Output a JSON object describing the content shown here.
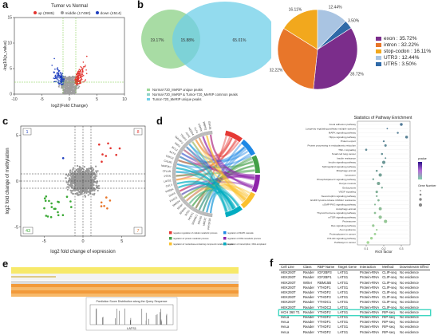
{
  "panels": {
    "a": {
      "label": "a",
      "title": "Tumor vs Normal",
      "legend": [
        {
          "label": "up (3985)",
          "color": "#e3342f"
        },
        {
          "label": "middle (17490)",
          "color": "#9e9e9e"
        },
        {
          "label": "down (4514)",
          "color": "#1f3fbf"
        }
      ]
    },
    "b": {
      "label": "b",
      "venn": {
        "left_pct": "19.17%",
        "overlap_pct": "15.88%",
        "right_pct": "65.01%",
        "left_color": "#9fd89a",
        "right_color": "#6fcfe8",
        "legend": [
          "Normal-720_MeRIP unique peaks",
          "Normal-720_MeRIP & Tumor-720_MeRIP common peaks",
          "Tumor-720_MeRIP unique peaks"
        ]
      },
      "pie_legend": [
        {
          "label": "exon : 35.72%",
          "color": "#7b2d8b"
        },
        {
          "label": "intron : 32.22%",
          "color": "#e8762a"
        },
        {
          "label": "stop-codon : 16.11%",
          "color": "#f2a81d"
        },
        {
          "label": "UTR3 : 12.44%",
          "color": "#a9c4e2"
        },
        {
          "label": "UTR5 : 3.50%",
          "color": "#2f6aa8"
        }
      ]
    },
    "c": {
      "label": "c",
      "quadrant_counts": {
        "top_left": "1",
        "top_right": "8",
        "bottom_left": "43",
        "bottom_right": "7"
      }
    },
    "d": {
      "label": "d",
      "enrichment_title": "Statistics of Pathway Enrichment",
      "xlabel": "Rich factor",
      "pathways": [
        "Focal adhesion pathway",
        "Longevity regulating pathway-multiple species",
        "MAPK signaling pathway",
        "Hippo signaling pathway",
        "Protein export",
        "Protein processing in endoplasmic reticulum",
        "TNF-1 signaling",
        "Small cell lung cancer",
        "Insulin resistance",
        "Insulin signaling pathway",
        "Sphingolipid signaling pathway",
        "Mitophagy-animal",
        "Lysosome",
        "Phospholipase D signaling pathway",
        "Oocyte meiosis",
        "Endocytosis",
        "VEGF signaling",
        "Neurotrophin signaling pathway",
        "EGFR tyrosine kinase inhibitor resistance",
        "cGMP-PKG signaling pathway",
        "Autophagy-animal",
        "Thyroid hormone signaling pathway",
        "mTOR signaling pathway",
        "Proteasome",
        "Ras signaling pathway",
        "Axon guidance",
        "Proteoglycans in cancer",
        "PI3-Akt signaling pathway",
        "Pathways in cancer"
      ],
      "chord_legend": [
        {
          "label": "negative regulation of cellular metabolic process",
          "color": "#e53935"
        },
        {
          "label": "regulation of MAPK cascade",
          "color": "#1e88e5"
        },
        {
          "label": "regulation of protein metabolic process",
          "color": "#43a047"
        },
        {
          "label": "regulation of RNA metabolic process",
          "color": "#8e24aa"
        },
        {
          "label": "regulation of nucleobase-containing compound metabolic process",
          "color": "#fbc02d"
        },
        {
          "label": "regulation of transcription, DNA-templated",
          "color": "#00acc1"
        }
      ],
      "genes": [
        "PPP2R1B",
        "UBE3C",
        "SOCS5",
        "SERINC1",
        "ROCK1",
        "SOS1",
        "BRMS1",
        "NKAP",
        "SMAD4",
        "FOXO1",
        "DHX9",
        "RAB2A",
        "CUL3",
        "LATS1",
        "PTEN",
        "CFLAR",
        "MAP3K7",
        "CALM1",
        "CDK13",
        "AKT3",
        "BCL2",
        "PAK2",
        "SMURF2",
        "TRAF3",
        "ATF2",
        "NEDD4",
        "KLF4",
        "USP9X",
        "BMPR2",
        "GSK3B"
      ],
      "size_legend_title": "Gene Number",
      "pvalue_legend_title": "pvalue"
    },
    "e": {
      "label": "e",
      "gene": "LATS1",
      "chart_title": "Prediction Score Distribution along the Query Sequence"
    },
    "f": {
      "label": "f",
      "columns": [
        "Cell Line",
        "Class",
        "RBP Name",
        "Target Gene",
        "Interaction",
        "Method",
        "Downstream Effect"
      ],
      "rows": [
        [
          "HEK293T",
          "Reader",
          "IGF2BP3",
          "LATS1",
          "Protein-RNA",
          "CLIP-seq",
          "No evidence"
        ],
        [
          "HEK293T",
          "Reader",
          "IGF2BP1",
          "LATS1",
          "Protein-RNA",
          "CLIP-seq",
          "No evidence"
        ],
        [
          "HEK293T",
          "Writer",
          "RBM15B",
          "LATS1",
          "Protein-RNA",
          "CLIP-seq",
          "No evidence"
        ],
        [
          "HEK293T",
          "Reader",
          "YTHDF1",
          "LATS1",
          "Protein-RNA",
          "CLIP-seq",
          "No evidence"
        ],
        [
          "HEK293T",
          "Reader",
          "YTHDF2",
          "LATS1",
          "Protein-RNA",
          "CLIP-seq",
          "No evidence"
        ],
        [
          "HEK293T",
          "Reader",
          "YTHDF3",
          "LATS1",
          "Protein-RNA",
          "CLIP-seq",
          "No evidence"
        ],
        [
          "HEK293T",
          "Reader",
          "YTHDC1",
          "LATS1",
          "Protein-RNA",
          "CLIP-seq",
          "No evidence"
        ],
        [
          "HEK293T",
          "Reader",
          "YTHDC2",
          "LATS1",
          "Protein-RNA",
          "CLIP-seq",
          "No evidence"
        ],
        [
          "HCH 360 T1",
          "Reader",
          "YTHDF2",
          "LATS1",
          "Protein-RNA",
          "RIP-seq",
          "No evidence"
        ],
        [
          "HeLa",
          "Reader",
          "YTHDF2",
          "LATS1",
          "Protein-RNA",
          "RIP-seq",
          "No evidence"
        ],
        [
          "HeLa",
          "Reader",
          "YTHDF1",
          "LATS1",
          "Protein-RNA",
          "RIP-seq",
          "No evidence"
        ],
        [
          "HeLa",
          "Reader",
          "YTHDF2",
          "LATS1",
          "Protein-RNA",
          "RIP-seq",
          "No evidence"
        ],
        [
          "HeLa",
          "Reader",
          "YTHDF2",
          "LATS1",
          "Protein-RNA",
          "RIP-seq",
          "No evidence"
        ]
      ],
      "highlight_row": 8,
      "highlight_color": "#3fd6c0"
    }
  },
  "chart_data": [
    {
      "type": "scatter",
      "panel": "a",
      "title": "Tumor vs Normal",
      "xlabel": "log2(Fold Change)",
      "ylabel": "-log10(p_value)",
      "xlim": [
        -10,
        10
      ],
      "ylim": [
        0,
        15
      ],
      "xticks": [
        -10,
        -5,
        0,
        5,
        10
      ],
      "yticks": [
        0,
        5,
        10,
        15
      ],
      "series": [
        {
          "name": "up (3985)",
          "count": 3985
        },
        {
          "name": "middle (17490)",
          "count": 17490
        },
        {
          "name": "down (4514)",
          "count": 4514
        }
      ]
    },
    {
      "type": "pie",
      "panel": "b",
      "categories": [
        "exon",
        "intron",
        "stop-codon",
        "UTR3",
        "UTR5"
      ],
      "values": [
        35.72,
        32.22,
        16.11,
        12.44,
        3.5
      ],
      "slice_labels": [
        "35.72%",
        "32.22%",
        "16.11%",
        "12.44%",
        "3.50%"
      ]
    },
    {
      "type": "scatter",
      "panel": "c",
      "xlabel": "log2 fold change of expression",
      "ylabel": "log2 fold change of methylation",
      "xlim": [
        -8,
        8
      ],
      "ylim": [
        -6,
        6
      ],
      "xticks": [
        -5,
        0,
        5
      ],
      "yticks": [
        -5,
        0,
        5
      ]
    },
    {
      "type": "scatter",
      "panel": "d",
      "title": "Statistics of Pathway Enrichment",
      "xlabel": "Rich factor",
      "xlim": [
        0.05,
        0.35
      ],
      "xticks": [
        0.1,
        0.2,
        0.3
      ],
      "rich_factor": [
        0.3,
        0.22,
        0.28,
        0.33,
        0.2,
        0.21,
        0.1,
        0.19,
        0.21,
        0.2,
        0.19,
        0.16,
        0.18,
        0.14,
        0.17,
        0.19,
        0.16,
        0.16,
        0.17,
        0.15,
        0.18,
        0.15,
        0.18,
        0.21,
        0.14,
        0.16,
        0.15,
        0.13,
        0.11
      ]
    }
  ]
}
